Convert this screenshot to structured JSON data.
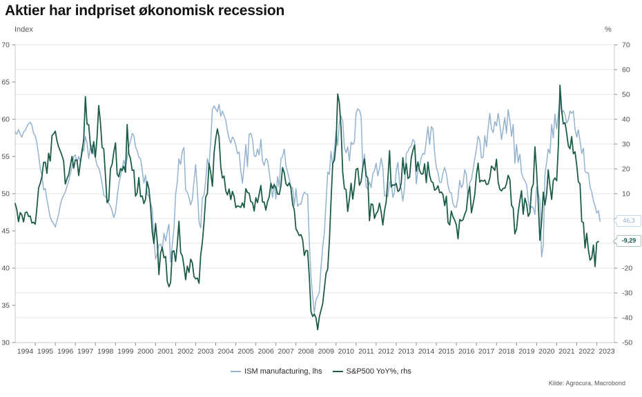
{
  "title": "Aktier har indpriset økonomisk recession",
  "source": "Kilde: Agrocura, Macrobond",
  "colors": {
    "ism_blue": "#94B2CE",
    "spx_green": "#1B5B49",
    "grid": "#e4e4e4",
    "axis": "#c9c9c9",
    "tick": "#8c8c8c",
    "tick_text": "#4d4d4d"
  },
  "left_axis": {
    "unit": "Index",
    "min": 30,
    "max": 70,
    "ticks": [
      70,
      65,
      60,
      55,
      50,
      45,
      40,
      35,
      30
    ]
  },
  "right_axis": {
    "unit": "%",
    "min": -50,
    "max": 70,
    "ticks": [
      70,
      60,
      50,
      40,
      30,
      20,
      10,
      0,
      -10,
      -20,
      -30,
      -40,
      -50
    ]
  },
  "x_axis": {
    "years": [
      1994,
      1995,
      1996,
      1997,
      1998,
      1999,
      2000,
      2001,
      2002,
      2003,
      2004,
      2005,
      2006,
      2007,
      2008,
      2009,
      2010,
      2011,
      2012,
      2013,
      2014,
      2015,
      2016,
      2017,
      2018,
      2019,
      2020,
      2021,
      2022,
      2023
    ]
  },
  "legend": [
    {
      "label": "ISM manufacturing, lhs",
      "color": "#94B2CE"
    },
    {
      "label": "S&P500 YoY%, rhs",
      "color": "#1B5B49"
    }
  ],
  "callouts": [
    {
      "text": "46,3",
      "value": 46.3,
      "axis": "left",
      "text_color": "#8FAECB",
      "border_color": "#C3D6E4"
    },
    {
      "text": "-9,29",
      "value": -9.29,
      "axis": "right",
      "text_color": "#17584A",
      "border_color": "#A8C6BA"
    }
  ],
  "chart_data": {
    "type": "line",
    "frequency": "monthly",
    "x_start": "1994-01",
    "x_end": "2023-03",
    "title": "Aktier har indpriset økonomisk recession",
    "left_axis_label": "Index",
    "right_axis_label": "%",
    "left_ylim": [
      30,
      70
    ],
    "right_ylim": [
      -50,
      70
    ],
    "grid": "horizontal-only",
    "legend_position": "bottom-center",
    "series": [
      {
        "name": "ISM manufacturing, lhs",
        "axis": "left",
        "color": "#94B2CE",
        "last_value_label": "46,3",
        "values": [
          58.3,
          58.0,
          58.6,
          58.0,
          57.6,
          58.3,
          58.5,
          59.0,
          59.4,
          59.6,
          59.2,
          58.1,
          57.8,
          56.8,
          55.2,
          53.4,
          52.5,
          50.5,
          50.7,
          49.2,
          48.0,
          46.8,
          46.3,
          46.0,
          45.5,
          46.4,
          47.2,
          48.5,
          49.3,
          49.8,
          50.2,
          51.0,
          51.7,
          52.6,
          53.6,
          55.0,
          55.2,
          54.3,
          55.0,
          54.2,
          56.2,
          55.7,
          57.7,
          56.8,
          54.7,
          56.2,
          56.5,
          55.4,
          54.8,
          53.8,
          53.5,
          52.6,
          51.4,
          49.8,
          49.6,
          49.3,
          48.7,
          48.3,
          47.7,
          46.8,
          47.5,
          49.5,
          51.3,
          52.3,
          53.5,
          54.5,
          53.6,
          54.8,
          56.3,
          57.0,
          58.1,
          57.8,
          56.3,
          55.8,
          54.9,
          54.7,
          53.2,
          51.4,
          52.5,
          49.9,
          49.7,
          48.7,
          47.9,
          43.9,
          41.2,
          41.9,
          43.1,
          43.2,
          42.5,
          44.7,
          43.6,
          44.9,
          45.9,
          40.8,
          43.2,
          45.3,
          49.9,
          51.6,
          54.7,
          53.9,
          55.7,
          56.2,
          50.5,
          50.2,
          49.5,
          48.5,
          49.2,
          51.6,
          53.9,
          50.5,
          46.2,
          45.4,
          49.4,
          49.8,
          51.8,
          54.7,
          53.7,
          57.0,
          61.3,
          61.8,
          61.4,
          61.0,
          62.0,
          60.4,
          61.1,
          60.5,
          59.9,
          58.5,
          57.4,
          56.8,
          57.6,
          57.3,
          56.5,
          55.4,
          55.6,
          53.1,
          51.4,
          53.8,
          56.6,
          53.6,
          58.0,
          58.1,
          57.3,
          55.1,
          55.0,
          56.0,
          55.2,
          57.3,
          54.4,
          53.8,
          54.7,
          54.5,
          52.9,
          51.2,
          49.5,
          51.4,
          49.3,
          52.3,
          50.9,
          54.7,
          55.0,
          56.0,
          53.8,
          52.9,
          52.0,
          50.9,
          50.8,
          48.4,
          50.7,
          48.3,
          48.6,
          48.6,
          49.6,
          50.2,
          50.0,
          49.9,
          43.5,
          38.9,
          36.2,
          34.0,
          35.8,
          36.2,
          36.8,
          40.1,
          42.8,
          44.8,
          48.9,
          52.9,
          52.6,
          55.7,
          53.6,
          55.9,
          58.4,
          56.5,
          59.6,
          60.4,
          59.7,
          56.2,
          55.5,
          56.3,
          54.4,
          56.9,
          56.6,
          57.0,
          60.8,
          61.4,
          61.2,
          60.4,
          53.5,
          55.3,
          50.9,
          50.6,
          51.6,
          50.8,
          52.7,
          53.1,
          54.1,
          52.4,
          53.4,
          54.8,
          53.5,
          49.7,
          49.8,
          49.6,
          51.5,
          51.7,
          49.5,
          50.2,
          53.1,
          54.2,
          51.3,
          50.7,
          49.0,
          50.9,
          55.4,
          55.7,
          56.2,
          56.4,
          57.3,
          57.0,
          51.3,
          53.2,
          53.7,
          54.9,
          55.4,
          55.3,
          57.1,
          59.0,
          56.6,
          59.0,
          58.7,
          55.5,
          53.5,
          52.9,
          51.5,
          51.5,
          52.8,
          53.5,
          52.7,
          51.1,
          50.2,
          50.1,
          48.6,
          48.2,
          48.2,
          49.5,
          51.8,
          50.8,
          51.3,
          53.2,
          52.6,
          49.4,
          51.5,
          51.9,
          53.2,
          54.7,
          56.0,
          57.7,
          57.2,
          54.8,
          54.9,
          57.8,
          56.3,
          58.8,
          60.8,
          58.7,
          58.2,
          59.7,
          59.1,
          60.8,
          59.3,
          57.3,
          58.7,
          60.2,
          58.1,
          61.3,
          59.8,
          57.7,
          59.3,
          54.1,
          56.6,
          54.2,
          55.3,
          52.8,
          52.1,
          51.7,
          51.2,
          49.1,
          47.8,
          48.3,
          48.1,
          47.2,
          50.9,
          50.1,
          49.1,
          41.5,
          43.1,
          52.6,
          54.2,
          56.0,
          55.4,
          59.3,
          57.5,
          60.7,
          58.7,
          60.8,
          63.3,
          60.7,
          61.2,
          60.6,
          59.5,
          59.9,
          61.1,
          60.8,
          61.1,
          58.7,
          57.6,
          58.6,
          57.1,
          55.4,
          56.1,
          53.0,
          52.8,
          52.8,
          50.9,
          50.2,
          49.0,
          48.4,
          47.4,
          47.7,
          46.3
        ]
      },
      {
        "name": "S&P500 YoY%, rhs",
        "axis": "right",
        "color": "#1B5B49",
        "last_value_label": "-9,29",
        "values": [
          6.0,
          3.5,
          -1.3,
          2.4,
          1.4,
          -1.4,
          2.3,
          2.6,
          0.8,
          1.0,
          -1.8,
          -1.5,
          -2.3,
          4.3,
          12.3,
          14.2,
          16.8,
          22.6,
          22.7,
          18.2,
          26.3,
          23.1,
          33.4,
          34.1,
          35.2,
          31.4,
          28.9,
          27.1,
          25.4,
          23.1,
          13.9,
          16.0,
          17.6,
          21.3,
          25.0,
          20.3,
          23.6,
          23.5,
          17.3,
          22.5,
          26.8,
          32.0,
          49.1,
          38.0,
          37.8,
          29.7,
          26.2,
          31.0,
          24.7,
          32.7,
          45.5,
          38.7,
          28.6,
          28.1,
          17.4,
          6.4,
          7.4,
          20.1,
          21.8,
          26.7,
          30.5,
          18.0,
          16.8,
          20.1,
          19.3,
          21.1,
          18.6,
          37.9,
          26.1,
          24.1,
          19.4,
          19.5,
          9.0,
          10.3,
          16.5,
          8.8,
          9.1,
          6.0,
          7.7,
          14.9,
          12.0,
          4.9,
          -5.3,
          -10.1,
          -2.0,
          -9.3,
          -22.6,
          -14.0,
          -11.6,
          -15.8,
          -15.3,
          -25.3,
          -27.5,
          -25.9,
          -13.3,
          -13.0,
          -17.3,
          -10.7,
          -1.1,
          -13.8,
          -15.0,
          -19.2,
          -24.7,
          -19.2,
          -21.7,
          -16.4,
          -17.8,
          -23.4,
          -24.3,
          -24.0,
          -26.1,
          -14.9,
          -9.7,
          -1.5,
          8.6,
          10.0,
          22.2,
          18.6,
          13.0,
          26.4,
          32.2,
          36.1,
          32.8,
          20.8,
          16.3,
          17.1,
          11.2,
          9.5,
          11.9,
          7.6,
          10.9,
          9.0,
          4.4,
          5.1,
          4.8,
          4.5,
          6.3,
          4.4,
          12.0,
          10.5,
          10.2,
          6.8,
          6.4,
          3.0,
          8.4,
          6.4,
          9.7,
          13.3,
          6.6,
          6.6,
          3.4,
          6.8,
          8.7,
          14.2,
          12.1,
          13.6,
          12.4,
          9.9,
          9.7,
          13.1,
          20.5,
          18.4,
          14.0,
          13.1,
          14.3,
          12.4,
          5.7,
          3.5,
          -4.2,
          -5.4,
          -6.9,
          -6.5,
          -8.5,
          -14.9,
          -12.9,
          -13.0,
          -23.6,
          -37.5,
          -39.5,
          -38.5,
          -40.1,
          -44.8,
          -39.7,
          -37.0,
          -34.4,
          -28.2,
          -22.1,
          -20.4,
          -9.4,
          7.0,
          22.2,
          23.5,
          30.0,
          50.2,
          46.6,
          36.0,
          18.5,
          12.1,
          11.6,
          2.8,
          8.0,
          14.2,
          7.8,
          12.8,
          19.8,
          20.2,
          13.4,
          14.9,
          20.5,
          24.0,
          17.3,
          16.2,
          -0.9,
          5.9,
          5.6,
          0.0,
          2.0,
          2.9,
          6.2,
          2.5,
          -2.6,
          3.1,
          6.7,
          15.4,
          27.3,
          12.7,
          13.6,
          13.4,
          14.1,
          10.9,
          11.4,
          14.3,
          24.5,
          17.9,
          22.2,
          16.1,
          16.7,
          24.4,
          27.5,
          29.6,
          19.0,
          22.8,
          19.3,
          17.9,
          18.0,
          22.0,
          14.5,
          22.7,
          17.3,
          14.9,
          14.5,
          11.4,
          11.9,
          13.2,
          10.4,
          10.7,
          9.6,
          5.2,
          9.0,
          -1.6,
          -2.6,
          3.0,
          0.6,
          -0.7,
          -2.7,
          -8.2,
          -0.4,
          -1.0,
          -0.5,
          1.7,
          3.3,
          10.1,
          12.9,
          2.3,
          5.7,
          9.5,
          17.5,
          22.3,
          14.7,
          15.4,
          15.0,
          15.5,
          13.7,
          13.9,
          16.2,
          21.1,
          20.4,
          19.4,
          23.9,
          14.8,
          11.8,
          11.1,
          12.2,
          12.2,
          14.0,
          17.4,
          15.7,
          5.3,
          4.3,
          -6.2,
          -4.2,
          2.6,
          7.3,
          11.2,
          1.7,
          8.2,
          5.8,
          0.9,
          2.2,
          12.0,
          13.8,
          28.9,
          19.3,
          6.1,
          -8.8,
          -1.1,
          10.6,
          5.4,
          9.8,
          19.6,
          13.0,
          7.7,
          15.3,
          16.3,
          15.2,
          29.0,
          53.7,
          43.6,
          38.1,
          38.6,
          34.4,
          29.2,
          28.1,
          33.0,
          26.1,
          26.9,
          21.6,
          14.8,
          14.0,
          -1.2,
          -1.7,
          -11.9,
          -6.0,
          -12.6,
          -16.8,
          -15.9,
          -10.7,
          -19.4,
          -9.7,
          -9.29
        ]
      }
    ]
  }
}
